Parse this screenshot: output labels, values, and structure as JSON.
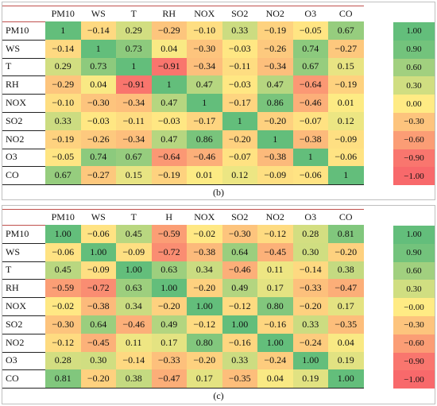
{
  "chart_data": [
    {
      "type": "heatmap",
      "caption": "(b)",
      "col_labels": [
        "PM10",
        "WS",
        "T",
        "RH",
        "NOX",
        "SO2",
        "NO2",
        "O3",
        "CO"
      ],
      "row_labels": [
        "PM10",
        "WS",
        "T",
        "RH",
        "NOX",
        "SO2",
        "NO2",
        "O3",
        "CO"
      ],
      "values": [
        [
          "1",
          "−0.14",
          "0.29",
          "−0.29",
          "−0.10",
          "0.33",
          "−0.19",
          "−0.05",
          "0.67"
        ],
        [
          "−0.14",
          "1",
          "0.73",
          "0.04",
          "−0.30",
          "−0.03",
          "−0.26",
          "0.74",
          "−0.27"
        ],
        [
          "0.29",
          "0.73",
          "1",
          "−0.91",
          "−0.34",
          "−0.11",
          "−0.34",
          "0.67",
          "0.15"
        ],
        [
          "−0.29",
          "0.04",
          "−0.91",
          "1",
          "0.47",
          "−0.03",
          "0.47",
          "−0.64",
          "−0.19"
        ],
        [
          "−0.10",
          "−0.30",
          "−0.34",
          "0.47",
          "1",
          "−0.17",
          "0.86",
          "−0.46",
          "0.01"
        ],
        [
          "0.33",
          "−0.03",
          "−0.11",
          "−0.03",
          "−0.17",
          "1",
          "−0.20",
          "−0.07",
          "0.12"
        ],
        [
          "−0.19",
          "−0.26",
          "−0.34",
          "0.47",
          "0.86",
          "−0.20",
          "1",
          "−0.38",
          "−0.09"
        ],
        [
          "−0.05",
          "0.74",
          "0.67",
          "−0.64",
          "−0.46",
          "−0.07",
          "−0.38",
          "1",
          "−0.06"
        ],
        [
          "0.67",
          "−0.27",
          "0.15",
          "−0.19",
          "0.01",
          "0.12",
          "−0.09",
          "−0.06",
          "1"
        ]
      ],
      "legend": [
        "1.00",
        "0.90",
        "0.60",
        "0.30",
        "0.00",
        "−0.30",
        "−0.60",
        "−0.90",
        "−1.00"
      ]
    },
    {
      "type": "heatmap",
      "caption": "(c)",
      "col_labels": [
        "PM10",
        "WS",
        "T",
        "H",
        "NOX",
        "SO2",
        "NO2",
        "O3",
        "CO"
      ],
      "row_labels": [
        "PM10",
        "WS",
        "T",
        "RH",
        "NOX",
        "SO2",
        "NO2",
        "O3",
        "CO"
      ],
      "values": [
        [
          "1.00",
          "−0.06",
          "0.45",
          "−0.59",
          "−0.02",
          "−0.30",
          "−0.12",
          "0.28",
          "0.81"
        ],
        [
          "−0.06",
          "1.00",
          "−0.09",
          "−0.72",
          "−0.38",
          "0.64",
          "−0.45",
          "0.30",
          "−0.20"
        ],
        [
          "0.45",
          "−0.09",
          "1.00",
          "0.63",
          "0.34",
          "−0.46",
          "0.11",
          "−0.14",
          "0.38"
        ],
        [
          "−0.59",
          "−0.72",
          "0.63",
          "1.00",
          "−0.20",
          "0.49",
          "0.17",
          "−0.33",
          "−0.47"
        ],
        [
          "−0.02",
          "−0.38",
          "0.34",
          "−0.20",
          "1.00",
          "−0.12",
          "0.80",
          "−0.20",
          "0.17"
        ],
        [
          "−0.30",
          "0.64",
          "−0.46",
          "0.49",
          "−0.12",
          "1.00",
          "−0.16",
          "0.33",
          "−0.35"
        ],
        [
          "−0.12",
          "−0.45",
          "0.11",
          "0.17",
          "0.80",
          "−0.16",
          "1.00",
          "−0.24",
          "0.04"
        ],
        [
          "0.28",
          "0.30",
          "−0.14",
          "−0.33",
          "−0.20",
          "0.33",
          "−0.24",
          "1.00",
          "0.19"
        ],
        [
          "0.81",
          "−0.20",
          "0.38",
          "−0.47",
          "0.17",
          "−0.35",
          "0.04",
          "0.19",
          "1.00"
        ]
      ],
      "legend": [
        "1.00",
        "0.90",
        "0.60",
        "0.30",
        "−0.00",
        "−0.30",
        "−0.60",
        "−0.90",
        "−1.00"
      ]
    }
  ]
}
